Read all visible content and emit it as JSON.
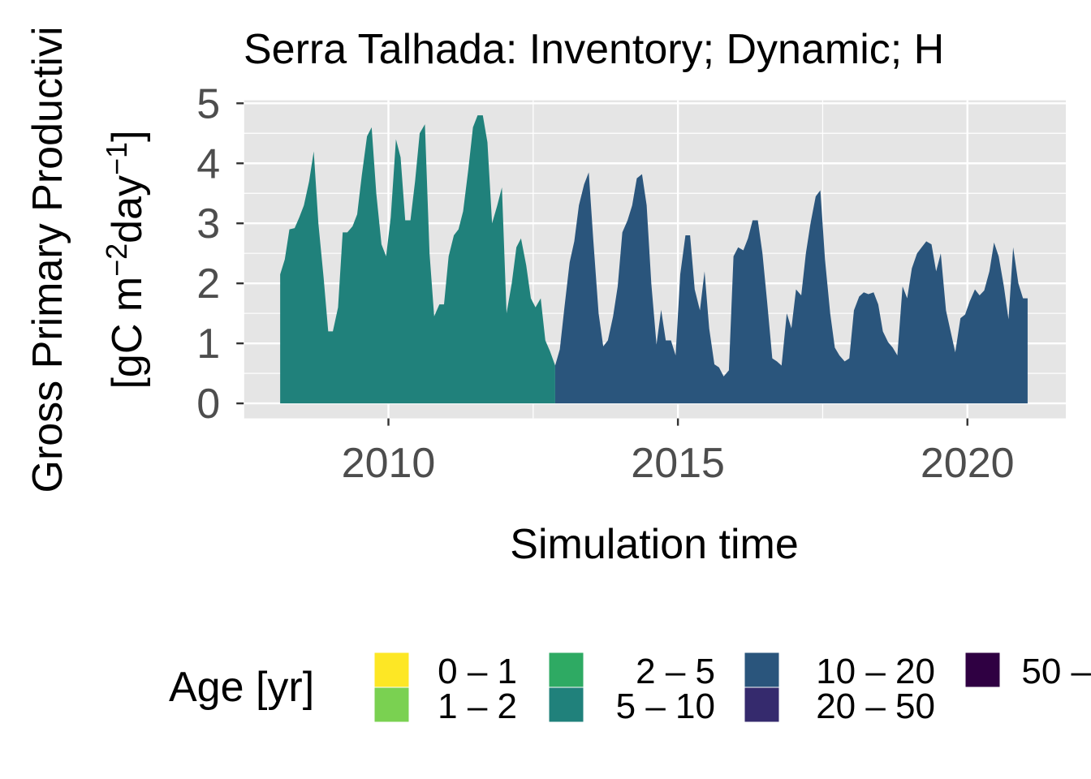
{
  "chart_data": {
    "type": "area",
    "title": "Serra Talhada: Inventory; Dynamic; H",
    "xlabel": "Simulation time",
    "ylabel_line1": "Gross Primary Productivi",
    "ylabel_line2_prefix": "[gC m",
    "ylabel_sup1": "−2",
    "ylabel_mid": "day",
    "ylabel_sup2": "−1",
    "ylabel_suffix": "]",
    "xlim": [
      2007.5,
      2021.7
    ],
    "ylim": [
      -0.25,
      5.05
    ],
    "x_ticks": [
      2010,
      2015,
      2020
    ],
    "x_tick_labels": [
      "2010",
      "2015",
      "2020"
    ],
    "y_ticks": [
      0,
      1,
      2,
      3,
      4,
      5
    ],
    "y_tick_labels": [
      "0",
      "1",
      "2",
      "3",
      "4",
      "5"
    ],
    "grid": true,
    "legend": {
      "title": "Age [yr]",
      "position": "bottom",
      "items": [
        {
          "label": "0 – 1",
          "color": "#fde725"
        },
        {
          "label": "1 – 2",
          "color": "#7ad151"
        },
        {
          "label": "2 – 5",
          "color": "#2eaa63"
        },
        {
          "label": "5 – 10",
          "color": "#20817b"
        },
        {
          "label": "10 – 20",
          "color": "#2a557c"
        },
        {
          "label": "20 – 50",
          "color": "#352a6d"
        },
        {
          "label": "50 –",
          "color": "#2f0042"
        }
      ]
    },
    "series": [
      {
        "name": "5 – 10",
        "color": "#20817b",
        "x": [
          2008.13,
          2008.21,
          2008.29,
          2008.38,
          2008.46,
          2008.54,
          2008.63,
          2008.71,
          2008.79,
          2008.88,
          2008.96,
          2009.04,
          2009.13,
          2009.21,
          2009.29,
          2009.38,
          2009.46,
          2009.54,
          2009.63,
          2009.71,
          2009.79,
          2009.88,
          2009.96,
          2010.04,
          2010.13,
          2010.21,
          2010.29,
          2010.38,
          2010.46,
          2010.54,
          2010.63,
          2010.71,
          2010.79,
          2010.88,
          2010.96,
          2011.04,
          2011.13,
          2011.21,
          2011.29,
          2011.38,
          2011.46,
          2011.54,
          2011.63,
          2011.71,
          2011.79,
          2011.88,
          2011.96,
          2012.04,
          2012.13,
          2012.21,
          2012.29,
          2012.38,
          2012.46,
          2012.54,
          2012.63,
          2012.71,
          2012.79,
          2012.88
        ],
        "values": [
          2.15,
          2.4,
          2.9,
          2.92,
          3.1,
          3.3,
          3.7,
          4.2,
          3.0,
          2.1,
          1.2,
          1.2,
          1.6,
          2.85,
          2.85,
          2.95,
          3.15,
          3.8,
          4.45,
          4.6,
          3.5,
          2.65,
          2.45,
          3.1,
          4.4,
          4.1,
          3.05,
          3.05,
          3.7,
          4.5,
          4.65,
          2.5,
          1.45,
          1.65,
          1.65,
          2.45,
          2.8,
          2.9,
          3.2,
          3.9,
          4.6,
          4.8,
          4.8,
          4.35,
          3.0,
          3.3,
          3.6,
          1.5,
          2.0,
          2.6,
          2.75,
          2.3,
          1.75,
          1.6,
          1.75,
          1.05,
          0.87,
          0.63
        ]
      },
      {
        "name": "10 – 20",
        "color": "#2a557c",
        "x": [
          2012.88,
          2012.96,
          2013.04,
          2013.13,
          2013.21,
          2013.29,
          2013.38,
          2013.46,
          2013.54,
          2013.63,
          2013.71,
          2013.79,
          2013.88,
          2013.96,
          2014.04,
          2014.13,
          2014.21,
          2014.29,
          2014.38,
          2014.46,
          2014.54,
          2014.63,
          2014.71,
          2014.79,
          2014.88,
          2014.96,
          2015.04,
          2015.13,
          2015.21,
          2015.29,
          2015.38,
          2015.46,
          2015.54,
          2015.63,
          2015.71,
          2015.79,
          2015.88,
          2015.96,
          2016.04,
          2016.13,
          2016.21,
          2016.29,
          2016.38,
          2016.46,
          2016.54,
          2016.63,
          2016.71,
          2016.79,
          2016.88,
          2016.96,
          2017.04,
          2017.13,
          2017.21,
          2017.29,
          2017.38,
          2017.46,
          2017.54,
          2017.63,
          2017.71,
          2017.79,
          2017.88,
          2017.96,
          2018.04,
          2018.13,
          2018.21,
          2018.29,
          2018.38,
          2018.46,
          2018.54,
          2018.63,
          2018.71,
          2018.79,
          2018.88,
          2018.96,
          2019.04,
          2019.13,
          2019.21,
          2019.29,
          2019.38,
          2019.46,
          2019.54,
          2019.63,
          2019.71,
          2019.79,
          2019.88,
          2019.96,
          2020.04,
          2020.13,
          2020.21,
          2020.29,
          2020.38,
          2020.46,
          2020.54,
          2020.63,
          2020.71,
          2020.79,
          2020.88,
          2020.96,
          2021.04
        ],
        "values": [
          0.63,
          0.9,
          1.6,
          2.35,
          2.7,
          3.3,
          3.65,
          3.85,
          2.7,
          1.5,
          0.95,
          1.05,
          1.45,
          1.95,
          2.85,
          3.05,
          3.3,
          3.75,
          3.82,
          3.3,
          2.0,
          0.98,
          1.56,
          1.05,
          1.05,
          0.8,
          2.15,
          2.8,
          2.8,
          1.9,
          1.55,
          2.2,
          1.25,
          0.65,
          0.6,
          0.45,
          0.55,
          2.45,
          2.6,
          2.55,
          2.75,
          3.05,
          3.05,
          2.5,
          1.7,
          0.75,
          0.7,
          0.63,
          1.5,
          1.25,
          1.9,
          1.8,
          2.5,
          3.0,
          3.45,
          3.55,
          2.4,
          1.5,
          0.93,
          0.8,
          0.7,
          0.75,
          1.55,
          1.78,
          1.85,
          1.82,
          1.85,
          1.65,
          1.2,
          1.02,
          0.93,
          0.8,
          1.95,
          1.75,
          2.25,
          2.5,
          2.6,
          2.7,
          2.65,
          2.2,
          2.5,
          1.55,
          1.2,
          0.85,
          1.42,
          1.48,
          1.7,
          1.9,
          1.8,
          1.88,
          2.2,
          2.68,
          2.45,
          1.95,
          1.4,
          2.6,
          2.0,
          1.75,
          1.75
        ]
      }
    ]
  }
}
